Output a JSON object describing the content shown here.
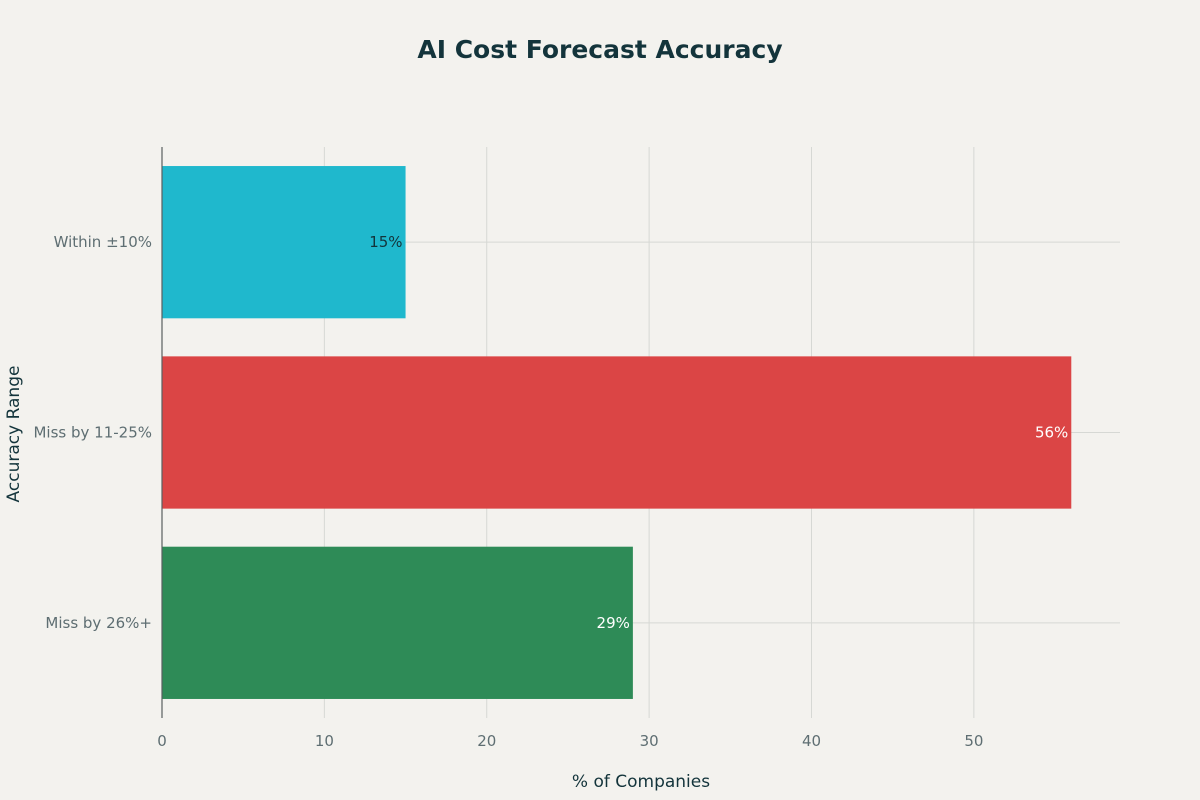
{
  "chart_data": {
    "type": "bar",
    "orientation": "horizontal",
    "title": "AI Cost Forecast Accuracy",
    "xlabel": "% of Companies",
    "ylabel": "Accuracy Range",
    "categories": [
      "Within ±10%",
      "Miss by 11-25%",
      "Miss by 26%+"
    ],
    "values": [
      15,
      56,
      29
    ],
    "data_labels": [
      "15%",
      "56%",
      "29%"
    ],
    "colors": [
      "#1fb8cd",
      "#db4545",
      "#2e8b57"
    ],
    "label_colors": [
      "#13343b",
      "#ffffff",
      "#ffffff"
    ],
    "xlim": [
      0,
      59
    ],
    "xticks": [
      0,
      10,
      20,
      30,
      40,
      50
    ],
    "grid": true,
    "legend": "none"
  }
}
